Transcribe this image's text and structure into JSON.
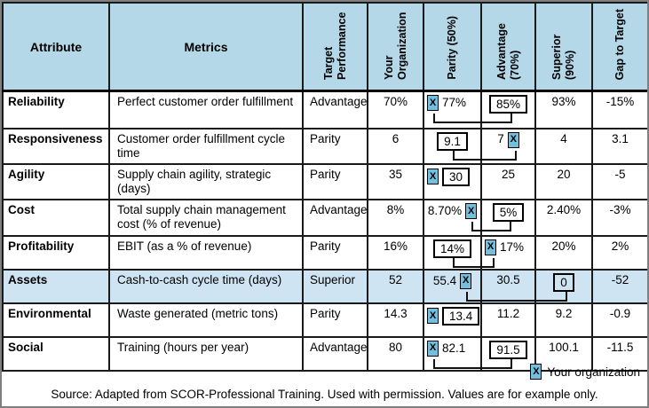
{
  "header": {
    "columns": [
      "Attribute",
      "Metrics",
      "Target Performance",
      "Your Organization",
      "Parity (50%)",
      "Advantage (70%)",
      "Superior (90%)",
      "Gap to Target"
    ]
  },
  "rows": [
    {
      "attribute": "Reliability",
      "metric": "Perfect customer order fulfillment",
      "target": "Advantage",
      "your_org": "70%",
      "parity": {
        "value": "77%",
        "box": false,
        "marker": "left"
      },
      "advantage": {
        "value": "85%",
        "box": true,
        "marker": null
      },
      "superior": {
        "value": "93%",
        "box": false,
        "marker": null
      },
      "gap": "-15%",
      "highlight": false,
      "connector": true
    },
    {
      "attribute": "Responsiveness",
      "metric": "Customer order fulfillment cycle time",
      "target": "Parity",
      "your_org": "6",
      "parity": {
        "value": "9.1",
        "box": true,
        "marker": null
      },
      "advantage": {
        "value": "7",
        "box": false,
        "marker": "right"
      },
      "superior": {
        "value": "4",
        "box": false,
        "marker": null
      },
      "gap": "3.1",
      "highlight": false,
      "connector": true
    },
    {
      "attribute": "Agility",
      "metric": "Supply chain agility, strategic (days)",
      "target": "Parity",
      "your_org": "35",
      "parity": {
        "value": "30",
        "box": true,
        "marker": "left"
      },
      "advantage": {
        "value": "25",
        "box": false,
        "marker": null
      },
      "superior": {
        "value": "20",
        "box": false,
        "marker": null
      },
      "gap": "-5",
      "highlight": false,
      "connector": false
    },
    {
      "attribute": "Cost",
      "metric": "Total supply chain management cost (% of revenue)",
      "target": "Advantage",
      "your_org": "8%",
      "parity": {
        "value": "8.70%",
        "box": false,
        "marker": "right"
      },
      "advantage": {
        "value": "5%",
        "box": true,
        "marker": null
      },
      "superior": {
        "value": "2.40%",
        "box": false,
        "marker": null
      },
      "gap": "-3%",
      "highlight": false,
      "connector": true
    },
    {
      "attribute": "Profitability",
      "metric": "EBIT (as a % of revenue)",
      "target": "Parity",
      "your_org": "16%",
      "parity": {
        "value": "14%",
        "box": true,
        "marker": null
      },
      "advantage": {
        "value": "17%",
        "box": false,
        "marker": "left"
      },
      "superior": {
        "value": "20%",
        "box": false,
        "marker": null
      },
      "gap": "2%",
      "highlight": false,
      "connector": true
    },
    {
      "attribute": "Assets",
      "metric": "Cash-to-cash cycle time (days)",
      "target": "Superior",
      "your_org": "52",
      "parity": {
        "value": "55.4",
        "box": false,
        "marker": "right"
      },
      "advantage": {
        "value": "30.5",
        "box": false,
        "marker": null
      },
      "superior": {
        "value": "0",
        "box": true,
        "marker": null
      },
      "gap": "-52",
      "highlight": true,
      "connector": true
    },
    {
      "attribute": "Environmental",
      "metric": "Waste generated (metric tons)",
      "target": "Parity",
      "your_org": "14.3",
      "parity": {
        "value": "13.4",
        "box": true,
        "marker": "left"
      },
      "advantage": {
        "value": "11.2",
        "box": false,
        "marker": null
      },
      "superior": {
        "value": "9.2",
        "box": false,
        "marker": null
      },
      "gap": "-0.9",
      "highlight": false,
      "connector": false
    },
    {
      "attribute": "Social",
      "metric": "Training (hours per year)",
      "target": "Advantage",
      "your_org": "80",
      "parity": {
        "value": "82.1",
        "box": false,
        "marker": "left"
      },
      "advantage": {
        "value": "91.5",
        "box": true,
        "marker": null
      },
      "superior": {
        "value": "100.1",
        "box": false,
        "marker": null
      },
      "gap": "-11.5",
      "highlight": false,
      "connector": true
    }
  ],
  "legend": {
    "marker": "X",
    "label": "Your organization"
  },
  "source": "Source: Adapted from SCOR-Professional Training. Used with permission. Values are for example only.",
  "colors": {
    "header_bg": "#b5d8e9",
    "highlight_bg": "#cfe4f2",
    "marker_bg": "#72bfdf",
    "grid": "#1a1a1a"
  }
}
